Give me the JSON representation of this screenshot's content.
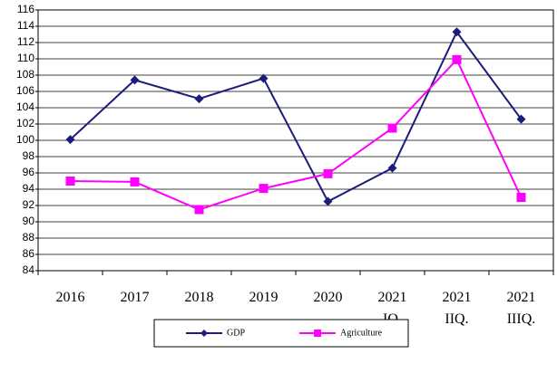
{
  "chart_data": {
    "type": "line",
    "categories": [
      "2016",
      "2017",
      "2018",
      "2019",
      "2020",
      "2021 IQ.",
      "2021 IIQ.",
      "2021 IIIQ."
    ],
    "series": [
      {
        "name": "GDP",
        "color": "#1c1c7c",
        "marker": "diamond",
        "values": [
          100.1,
          107.4,
          105.1,
          107.6,
          92.5,
          96.6,
          113.3,
          102.6
        ]
      },
      {
        "name": "Agriculture",
        "color": "#ff00ff",
        "marker": "square",
        "values": [
          95.0,
          94.9,
          91.5,
          94.1,
          95.9,
          101.5,
          109.9,
          93.0
        ]
      }
    ],
    "ylim": [
      84,
      116
    ],
    "yticks": [
      84,
      86,
      88,
      90,
      92,
      94,
      96,
      98,
      100,
      102,
      104,
      106,
      108,
      110,
      112,
      114,
      116
    ],
    "grid": true,
    "legend": "bottom"
  }
}
